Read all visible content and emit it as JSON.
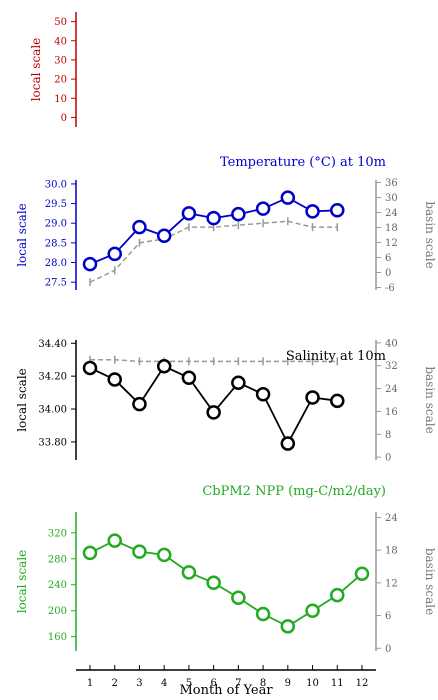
{
  "chart_data": [
    {
      "type": "line",
      "title": "",
      "ylabel": "local scale",
      "color": "#c00000",
      "ylim": [
        -5,
        55
      ],
      "yticks": [
        0,
        10,
        20,
        30,
        40,
        50
      ],
      "series": []
    },
    {
      "type": "line",
      "title": "Temperature (°C) at 10m",
      "ylabel": "local scale",
      "ylabel_right": "basin scale",
      "color": "#0000cc",
      "ylim": [
        27.3,
        30.1
      ],
      "yticks": [
        27.5,
        28.0,
        28.5,
        29.0,
        29.5,
        30.0
      ],
      "yticks_labels": [
        "27.5",
        "28.0",
        "28.5",
        "29.0",
        "29.5",
        "30.0"
      ],
      "ylim_right": [
        -7,
        37
      ],
      "yticks_right": [
        -6,
        0,
        6,
        12,
        18,
        24,
        30,
        36
      ],
      "x": [
        1,
        2,
        3,
        4,
        5,
        6,
        7,
        8,
        9,
        10,
        11
      ],
      "series": [
        {
          "role": "local",
          "values": [
            27.96,
            28.22,
            28.9,
            28.68,
            29.25,
            29.13,
            29.23,
            29.37,
            29.65,
            29.3,
            29.33
          ]
        },
        {
          "role": "basin",
          "values": [
            27.5,
            27.8,
            28.5,
            28.6,
            28.9,
            28.9,
            28.95,
            29.0,
            29.05,
            28.9,
            28.9
          ]
        }
      ]
    },
    {
      "type": "line",
      "title": "Salinity at 10m",
      "ylabel": "local scale",
      "ylabel_right": "basin scale",
      "color": "#000000",
      "ylim": [
        33.69,
        34.42
      ],
      "yticks": [
        33.8,
        34.0,
        34.2,
        34.4
      ],
      "yticks_labels": [
        "33.80",
        "34.00",
        "34.20",
        "34.40"
      ],
      "ylim_right": [
        -1,
        41
      ],
      "yticks_right": [
        0,
        8,
        16,
        24,
        32,
        40
      ],
      "x": [
        1,
        2,
        3,
        4,
        5,
        6,
        7,
        8,
        9,
        10,
        11
      ],
      "series": [
        {
          "role": "local",
          "values": [
            34.25,
            34.18,
            34.03,
            34.26,
            34.19,
            33.98,
            34.16,
            34.09,
            33.79,
            34.07,
            34.05
          ]
        },
        {
          "role": "basin",
          "values": [
            34.3,
            34.3,
            34.29,
            34.29,
            34.29,
            34.29,
            34.29,
            34.29,
            34.29,
            34.29,
            34.29
          ]
        }
      ]
    },
    {
      "type": "line",
      "title": "CbPM2 NPP (mg-C/m2/day)",
      "ylabel": "local scale",
      "ylabel_right": "basin scale",
      "color": "#22aa22",
      "ylim": [
        138,
        352
      ],
      "yticks": [
        160,
        200,
        240,
        280,
        320
      ],
      "ylim_right": [
        -0.5,
        25
      ],
      "yticks_right": [
        0,
        6,
        12,
        18,
        24
      ],
      "x": [
        1,
        2,
        3,
        4,
        5,
        6,
        7,
        8,
        9,
        10,
        11,
        12
      ],
      "series": [
        {
          "role": "local",
          "values": [
            289,
            308,
            291,
            286,
            259,
            243,
            220,
            195,
            176,
            200,
            224,
            257
          ]
        }
      ]
    }
  ],
  "xaxis": {
    "label": "Month of Year",
    "ticks": [
      1,
      2,
      3,
      4,
      5,
      6,
      7,
      8,
      9,
      10,
      11,
      12
    ]
  },
  "colors": {
    "basin": "#999999"
  }
}
